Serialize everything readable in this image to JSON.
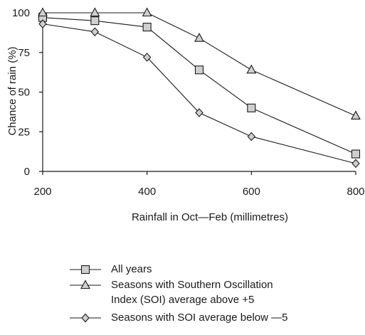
{
  "chart_data": {
    "type": "line",
    "title": "",
    "xlabel": "Rainfall in Oct—Feb (millimetres)",
    "ylabel": "Chance of rain (%)",
    "xlim": [
      200,
      800
    ],
    "ylim": [
      0,
      100
    ],
    "xticks": [
      "200",
      "400",
      "600",
      "800"
    ],
    "yticks": [
      "0",
      "25",
      "50",
      "75",
      "100"
    ],
    "grid": false,
    "legend_position": "bottom",
    "series": [
      {
        "name": "All years",
        "marker": "square",
        "x": [
          200,
          300,
          400,
          500,
          600,
          800
        ],
        "y": [
          97,
          95,
          91,
          64,
          40,
          11
        ]
      },
      {
        "name": "Seasons with Southern Oscillation\nIndex (SOI) average above +5",
        "marker": "triangle",
        "x": [
          200,
          300,
          400,
          500,
          600,
          800
        ],
        "y": [
          100,
          100,
          100,
          84,
          64,
          35
        ]
      },
      {
        "name": "Seasons with SOI average below —5",
        "marker": "diamond",
        "x": [
          200,
          300,
          400,
          500,
          600,
          800
        ],
        "y": [
          93,
          88,
          72,
          37,
          22,
          5
        ]
      }
    ]
  },
  "colors": {
    "line": "#1a1a1a",
    "marker_fill": "#cfcfcf"
  }
}
